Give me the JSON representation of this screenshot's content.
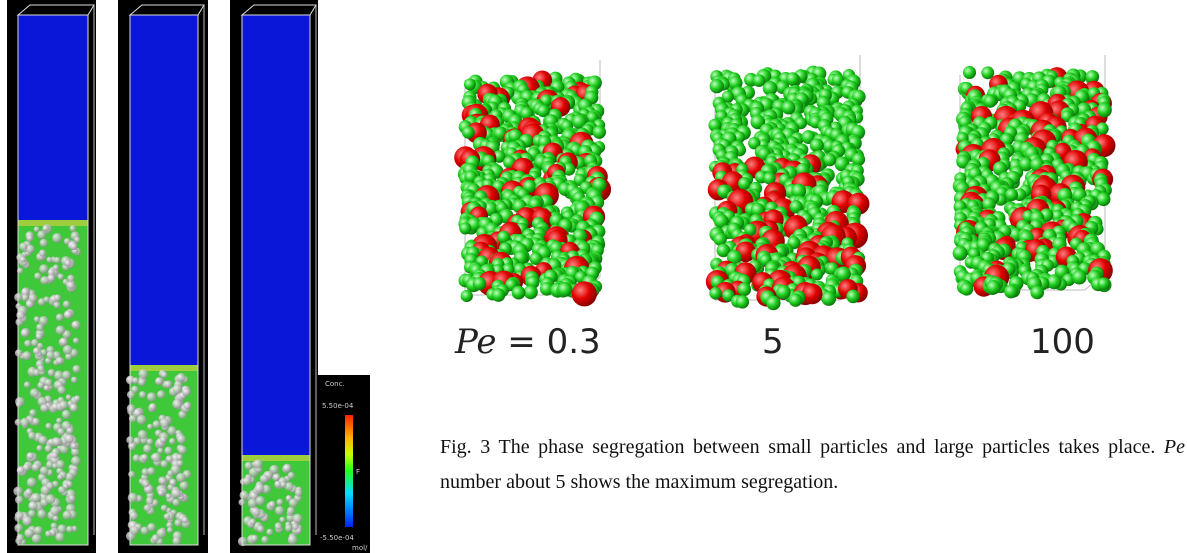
{
  "colorbar": {
    "title": "Conc.",
    "max_label": "5.50e-04",
    "mid_label": "F",
    "min_label": "-5.50e-04",
    "unit": "mol/"
  },
  "pe_labels": {
    "first_symbol": "Pe",
    "first_rest": " = 0.3",
    "second": "5",
    "third": "100"
  },
  "caption": {
    "part1": "Fig. 3 The phase segregation between small particles and large particles takes place. ",
    "italic": "Pe",
    "part2": " number about 5 shows the maximum segregation."
  }
}
